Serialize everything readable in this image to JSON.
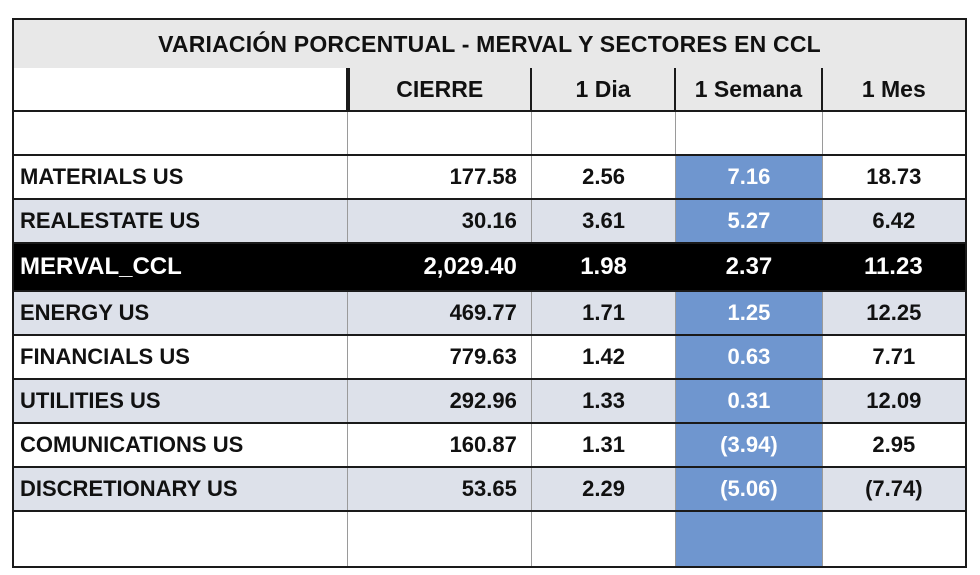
{
  "table": {
    "title": "VARIACIÓN PORCENTUAL  - MERVAL Y SECTORES EN CCL",
    "headers": [
      "",
      "CIERRE",
      "1 Dia",
      "1 Semana",
      "1 Mes"
    ],
    "rows": [
      {
        "name": "MATERIALS US",
        "cierre": "177.58",
        "dia": "2.56",
        "semana": "7.16",
        "mes": "18.73"
      },
      {
        "name": "REALESTATE US",
        "cierre": "30.16",
        "dia": "3.61",
        "semana": "5.27",
        "mes": "6.42"
      },
      {
        "name": "MERVAL_CCL",
        "cierre": "2,029.40",
        "dia": "1.98",
        "semana": "2.37",
        "mes": "11.23"
      },
      {
        "name": "ENERGY US",
        "cierre": "469.77",
        "dia": "1.71",
        "semana": "1.25",
        "mes": "12.25"
      },
      {
        "name": "FINANCIALS US",
        "cierre": "779.63",
        "dia": "1.42",
        "semana": "0.63",
        "mes": "7.71"
      },
      {
        "name": "UTILITIES US",
        "cierre": "292.96",
        "dia": "1.33",
        "semana": "0.31",
        "mes": "12.09"
      },
      {
        "name": "COMUNICATIONS US",
        "cierre": "160.87",
        "dia": "1.31",
        "semana": "(3.94)",
        "mes": "2.95"
      },
      {
        "name": "DISCRETIONARY US",
        "cierre": "53.65",
        "dia": "2.29",
        "semana": "(5.06)",
        "mes": "(7.74)"
      }
    ]
  },
  "colors": {
    "header_bg": "#e8e8e8",
    "highlight_column": "#6f96cf",
    "shaded_row": "#dde1ea",
    "merval_row": "#000000"
  }
}
